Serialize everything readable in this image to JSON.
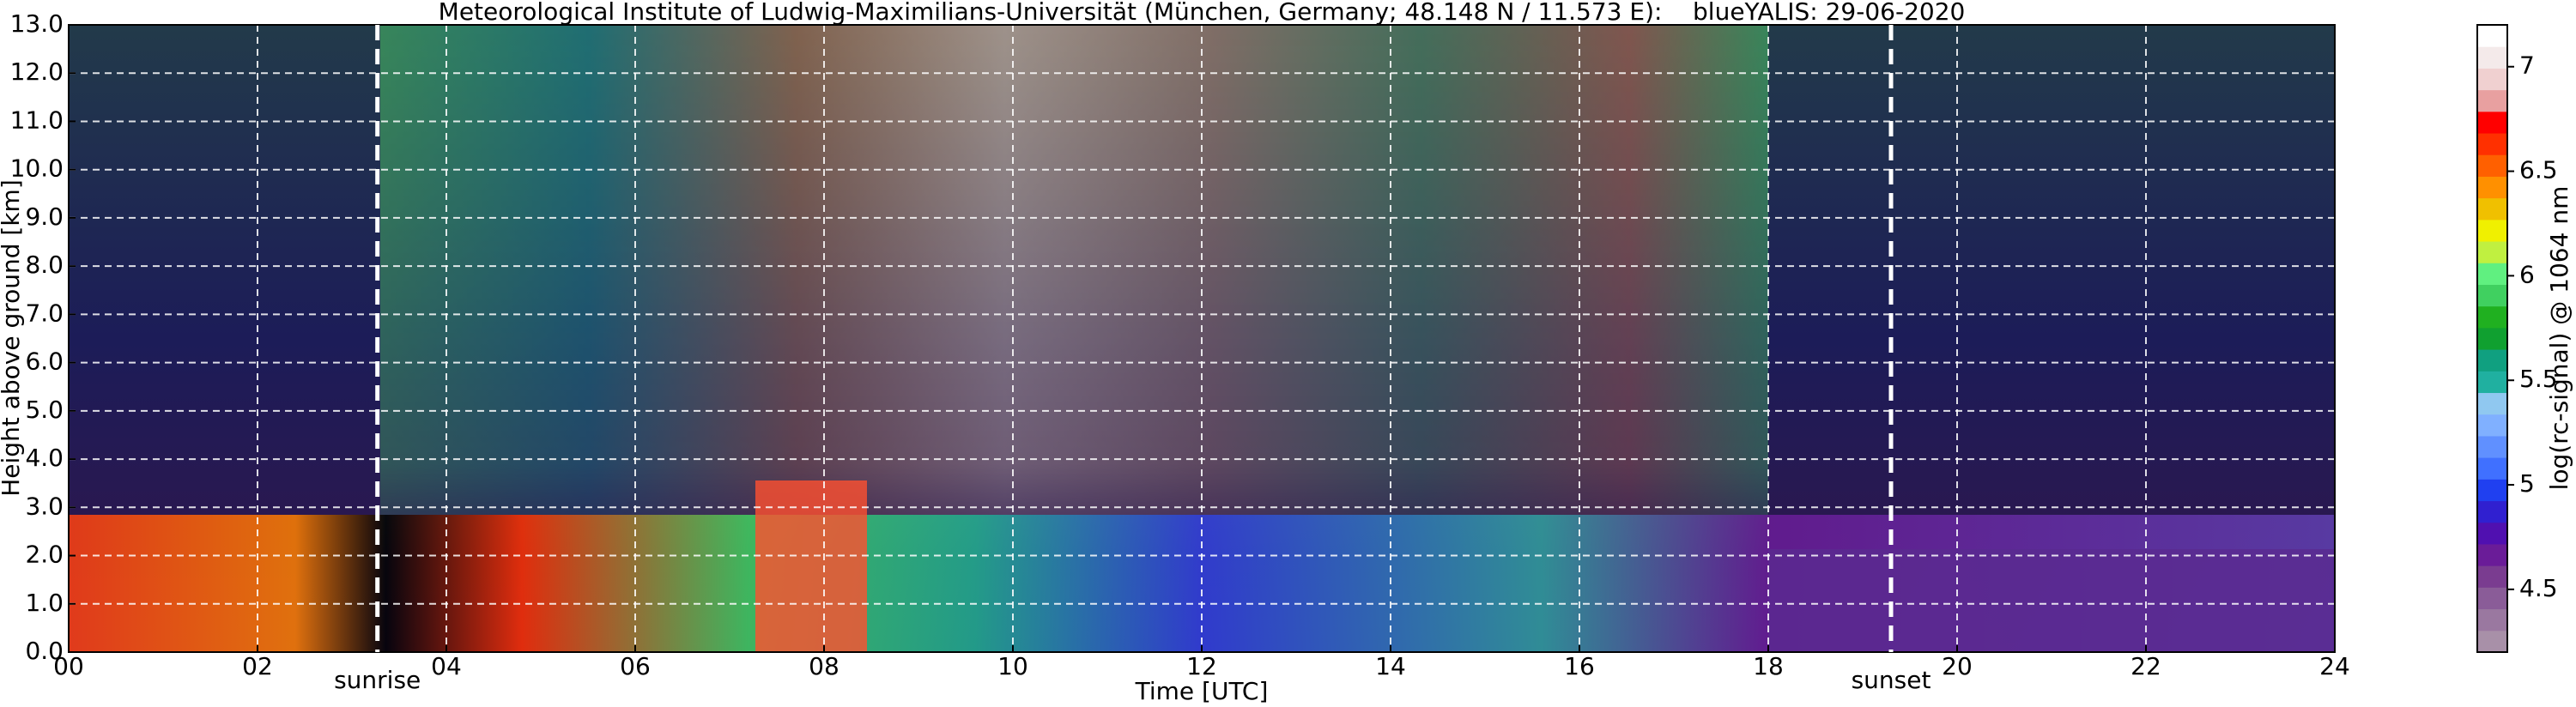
{
  "chart_data": {
    "type": "heatmap",
    "title": "Meteorological Institute of Ludwig-Maximilians-Universität (München, Germany; 48.148 N / 11.573 E):    blueYALIS: 29-06-2020",
    "xlabel": "Time [UTC]",
    "ylabel": "Height above ground [km]",
    "xlim": [
      0,
      24
    ],
    "xticks": [
      {
        "value": 0,
        "label": "00"
      },
      {
        "value": 2,
        "label": "02"
      },
      {
        "value": 4,
        "label": "04"
      },
      {
        "value": 6,
        "label": "06"
      },
      {
        "value": 8,
        "label": "08"
      },
      {
        "value": 10,
        "label": "10"
      },
      {
        "value": 12,
        "label": "12"
      },
      {
        "value": 14,
        "label": "14"
      },
      {
        "value": 16,
        "label": "16"
      },
      {
        "value": 18,
        "label": "18"
      },
      {
        "value": 20,
        "label": "20"
      },
      {
        "value": 22,
        "label": "22"
      },
      {
        "value": 24,
        "label": "24"
      }
    ],
    "ylim": [
      0,
      13
    ],
    "yticks": [
      {
        "value": 0,
        "label": "0.0"
      },
      {
        "value": 1,
        "label": "1.0"
      },
      {
        "value": 2,
        "label": "2.0"
      },
      {
        "value": 3,
        "label": "3.0"
      },
      {
        "value": 4,
        "label": "4.0"
      },
      {
        "value": 5,
        "label": "5.0"
      },
      {
        "value": 6,
        "label": "6.0"
      },
      {
        "value": 7,
        "label": "7.0"
      },
      {
        "value": 8,
        "label": "8.0"
      },
      {
        "value": 9,
        "label": "9.0"
      },
      {
        "value": 10,
        "label": "10.0"
      },
      {
        "value": 11,
        "label": "11.0"
      },
      {
        "value": 12,
        "label": "12.0"
      },
      {
        "value": 13,
        "label": "13.0"
      }
    ],
    "grid": true,
    "annotations": [
      {
        "text": "sunrise",
        "x": 3.27
      },
      {
        "text": "sunset",
        "x": 19.3
      }
    ],
    "colorbar": {
      "label": "log(rc-signal) @ 1064 nm",
      "clim": [
        4.2,
        7.2
      ],
      "ticks": [
        4.5,
        5.0,
        5.5,
        6.0,
        6.5,
        7.0
      ],
      "colors": [
        "#a890a8",
        "#9a78a0",
        "#8a5c98",
        "#7a3c90",
        "#6a1c98",
        "#5010b0",
        "#3020d0",
        "#2040f0",
        "#4070ff",
        "#6090ff",
        "#80b0ff",
        "#90c8f0",
        "#20b0a0",
        "#10a080",
        "#10a030",
        "#20b020",
        "#40d060",
        "#60f080",
        "#c0f040",
        "#f0f000",
        "#f0c000",
        "#ff9000",
        "#ff6000",
        "#ff3000",
        "#ff0000",
        "#e8a0a0",
        "#f0d0d0",
        "#f4eaea",
        "#ffffff"
      ]
    }
  }
}
